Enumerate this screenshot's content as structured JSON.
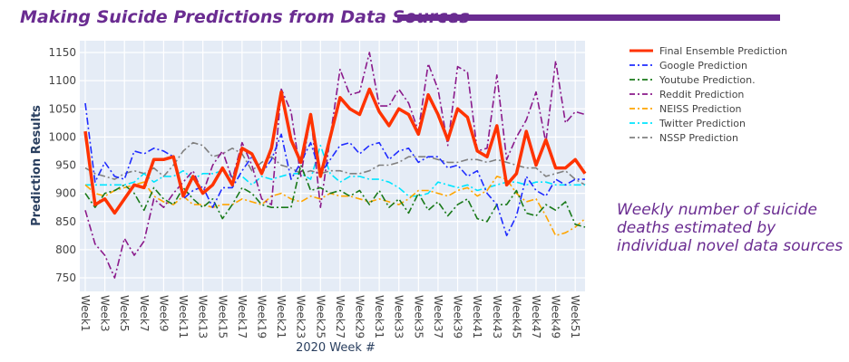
{
  "slide": {
    "title": "Making Suicide Predictions from Data Sources",
    "note": "Weekly number of suicide deaths estimated by individual novel data sources",
    "accent_color": "#6a2c91"
  },
  "chart_data": {
    "type": "line",
    "xlabel": "2020 Week #",
    "ylabel": "Prediction Results",
    "ylim": [
      730,
      1170
    ],
    "yticks": [
      750,
      800,
      850,
      900,
      950,
      1000,
      1050,
      1100,
      1150
    ],
    "x": [
      "Week1",
      "Week2",
      "Week3",
      "Week4",
      "Week5",
      "Week6",
      "Week7",
      "Week8",
      "Week9",
      "Week10",
      "Week11",
      "Week12",
      "Week13",
      "Week14",
      "Week15",
      "Week16",
      "Week17",
      "Week18",
      "Week19",
      "Week20",
      "Week21",
      "Week22",
      "Week23",
      "Week24",
      "Week25",
      "Week26",
      "Week27",
      "Week28",
      "Week29",
      "Week30",
      "Week31",
      "Week32",
      "Week33",
      "Week34",
      "Week35",
      "Week36",
      "Week37",
      "Week38",
      "Week39",
      "Week40",
      "Week41",
      "Week42",
      "Week43",
      "Week44",
      "Week45",
      "Week46",
      "Week47",
      "Week48",
      "Week49",
      "Week50",
      "Week51",
      "Week52"
    ],
    "xtick_labels": [
      "Week1",
      "Week3",
      "Week5",
      "Week7",
      "Week9",
      "Week11",
      "Week13",
      "Week15",
      "Week17",
      "Week19",
      "Week21",
      "Week23",
      "Week25",
      "Week27",
      "Week29",
      "Week31",
      "Week33",
      "Week35",
      "Week37",
      "Week39",
      "Week41",
      "Week43",
      "Week45",
      "Week47",
      "Week49",
      "Week51"
    ],
    "grid": true,
    "legend_position": "right",
    "plot_background": "#e5ecf6",
    "series": [
      {
        "name": "Final Ensemble Prediction",
        "color": "#ff3300",
        "style": "solid",
        "values": [
          1010,
          880,
          890,
          865,
          890,
          915,
          910,
          960,
          960,
          965,
          895,
          930,
          900,
          915,
          945,
          915,
          980,
          970,
          935,
          980,
          1080,
          995,
          955,
          1040,
          930,
          1000,
          1070,
          1050,
          1040,
          1085,
          1045,
          1020,
          1050,
          1040,
          1005,
          1075,
          1040,
          995,
          1050,
          1035,
          975,
          965,
          1020,
          915,
          935,
          1010,
          950,
          995,
          945,
          945,
          960,
          935
        ]
      },
      {
        "name": "Google Prediction",
        "color": "#1f2cff",
        "style": "dashdot",
        "values": [
          1060,
          920,
          955,
          930,
          925,
          975,
          970,
          980,
          975,
          965,
          890,
          905,
          912,
          875,
          910,
          910,
          940,
          965,
          935,
          960,
          1005,
          925,
          955,
          990,
          935,
          960,
          985,
          990,
          970,
          985,
          990,
          960,
          975,
          980,
          955,
          965,
          965,
          945,
          950,
          930,
          940,
          900,
          880,
          825,
          860,
          930,
          905,
          895,
          925,
          915,
          925,
          925
        ]
      },
      {
        "name": "Youtube Prediction.",
        "color": "#1a7a1a",
        "style": "dashdot",
        "values": [
          900,
          875,
          900,
          905,
          915,
          900,
          870,
          910,
          890,
          880,
          910,
          890,
          875,
          890,
          855,
          880,
          910,
          900,
          880,
          875,
          875,
          875,
          950,
          905,
          910,
          900,
          905,
          895,
          905,
          880,
          905,
          875,
          890,
          865,
          900,
          870,
          885,
          860,
          880,
          890,
          855,
          850,
          880,
          880,
          905,
          865,
          860,
          880,
          870,
          885,
          845,
          840
        ]
      },
      {
        "name": "Reddit Prediction",
        "color": "#8b1a8b",
        "style": "dashdot",
        "values": [
          870,
          810,
          790,
          750,
          820,
          790,
          815,
          890,
          875,
          900,
          920,
          940,
          900,
          950,
          975,
          925,
          990,
          950,
          890,
          880,
          1085,
          1045,
          930,
          1040,
          875,
          1000,
          1120,
          1075,
          1080,
          1150,
          1055,
          1055,
          1085,
          1060,
          1010,
          1130,
          1085,
          985,
          1125,
          1115,
          975,
          980,
          1110,
          960,
          1000,
          1030,
          1080,
          990,
          1135,
          1025,
          1045,
          1040
        ]
      },
      {
        "name": "NEISS Prediction",
        "color": "#ffa500",
        "style": "dashdot",
        "values": [
          915,
          900,
          895,
          905,
          910,
          915,
          920,
          895,
          885,
          880,
          895,
          880,
          880,
          875,
          880,
          880,
          890,
          885,
          880,
          895,
          900,
          890,
          885,
          895,
          890,
          900,
          895,
          895,
          890,
          885,
          890,
          885,
          880,
          890,
          905,
          905,
          900,
          895,
          905,
          910,
          895,
          905,
          930,
          925,
          900,
          885,
          890,
          860,
          825,
          830,
          840,
          855
        ]
      },
      {
        "name": "Twitter Prediction",
        "color": "#00e5ff",
        "style": "dashdot",
        "values": [
          915,
          915,
          915,
          915,
          915,
          920,
          935,
          920,
          930,
          930,
          940,
          925,
          935,
          935,
          940,
          930,
          930,
          915,
          930,
          925,
          930,
          935,
          935,
          925,
          985,
          935,
          920,
          930,
          930,
          925,
          925,
          920,
          910,
          895,
          895,
          900,
          920,
          915,
          910,
          915,
          905,
          910,
          915,
          920,
          920,
          915,
          920,
          920,
          915,
          915,
          915,
          915
        ]
      },
      {
        "name": "NSSP Prediction",
        "color": "#808080",
        "style": "dashdot",
        "values": [
          945,
          935,
          930,
          925,
          935,
          940,
          935,
          945,
          930,
          950,
          975,
          990,
          985,
          965,
          970,
          980,
          970,
          940,
          955,
          965,
          950,
          945,
          935,
          940,
          935,
          940,
          940,
          935,
          935,
          940,
          950,
          950,
          955,
          965,
          965,
          965,
          960,
          955,
          955,
          960,
          960,
          955,
          960,
          955,
          950,
          945,
          945,
          930,
          935,
          940,
          925,
          915
        ]
      }
    ]
  }
}
